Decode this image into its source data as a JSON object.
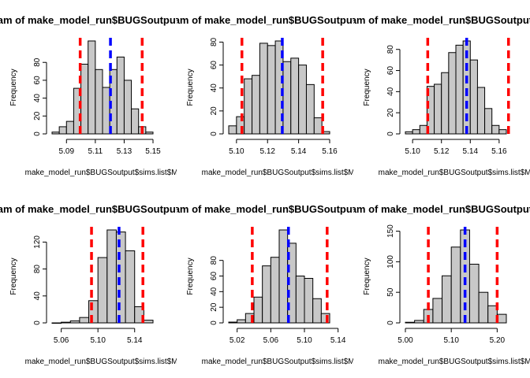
{
  "figure": {
    "title": "Histogram of make_model_run$BUGSoutput$sims.list$M[",
    "xlabel": "make_model_run$BUGSoutput$sims.list$M[",
    "ylabel": "Frequency"
  },
  "colors": {
    "bars": "#c8c8c8",
    "ci_lines": "#ff0000",
    "mean_line": "#0000ff"
  },
  "chart_data": [
    {
      "type": "bar",
      "title": "Histogram of make_model_run$BUGSoutput$sims.list$M[",
      "xlabel": "make_model_run$BUGSoutput$sims.list$M[",
      "ylabel": "Frequency",
      "bin_start": 5.08,
      "bin_width": 0.005,
      "values": [
        2,
        8,
        14,
        51,
        78,
        104,
        72,
        52,
        72,
        86,
        60,
        28,
        8,
        2
      ],
      "xticks": [
        5.09,
        5.11,
        5.13,
        5.15
      ],
      "yticks": [
        0,
        20,
        40,
        60,
        80
      ],
      "xlim": [
        5.08,
        5.15
      ],
      "ylim": [
        0,
        104
      ],
      "ci": [
        5.0995,
        5.1425
      ],
      "mean": 5.1205
    },
    {
      "type": "bar",
      "title": "Histogram of make_model_run$BUGSoutput$sims.list$M[",
      "xlabel": "make_model_run$BUGSoutput$sims.list$M[",
      "ylabel": "Frequency",
      "bin_start": 5.095,
      "bin_width": 0.005,
      "values": [
        7,
        15,
        48,
        51,
        79,
        77,
        81,
        63,
        66,
        60,
        43,
        14,
        2
      ],
      "xticks": [
        5.1,
        5.12,
        5.14,
        5.16
      ],
      "yticks": [
        0,
        20,
        40,
        60,
        80
      ],
      "xlim": [
        5.095,
        5.16
      ],
      "ylim": [
        0,
        81
      ],
      "ci": [
        5.1035,
        5.1555
      ],
      "mean": 5.1295
    },
    {
      "type": "bar",
      "title": "Histogram of make_model_run$BUGSoutput$sims.list$M[",
      "xlabel": "make_model_run$BUGSoutput$sims.list$M[",
      "ylabel": "Frequency",
      "bin_start": 5.095,
      "bin_width": 0.005,
      "values": [
        2,
        4,
        8,
        45,
        47,
        58,
        77,
        84,
        88,
        70,
        44,
        24,
        8,
        4
      ],
      "xticks": [
        5.1,
        5.12,
        5.14,
        5.16
      ],
      "yticks": [
        0,
        20,
        40,
        60,
        80
      ],
      "xlim": [
        5.095,
        5.165
      ],
      "ylim": [
        0,
        88
      ],
      "ci": [
        5.1105,
        5.1665
      ],
      "mean": 5.1375
    },
    {
      "type": "bar",
      "title": "Histogram of make_model_run$BUGSoutput$sims.list$M[",
      "xlabel": "make_model_run$BUGSoutput$sims.list$M[",
      "ylabel": "Frequency",
      "bin_start": 5.05,
      "bin_width": 0.01,
      "values": [
        0,
        1,
        3,
        8,
        33,
        97,
        138,
        135,
        107,
        24,
        4
      ],
      "xticks": [
        5.06,
        5.1,
        5.14
      ],
      "yticks": [
        0,
        40,
        80,
        120
      ],
      "xlim": [
        5.05,
        5.16
      ],
      "ylim": [
        0,
        138
      ],
      "ci": [
        5.093,
        5.149
      ],
      "mean": 5.123
    },
    {
      "type": "bar",
      "title": "Histogram of make_model_run$BUGSoutput$sims.list$M[",
      "xlabel": "make_model_run$BUGSoutput$sims.list$M[",
      "ylabel": "Frequency",
      "bin_start": 5.01,
      "bin_width": 0.01,
      "values": [
        1,
        4,
        12,
        33,
        73,
        84,
        119,
        102,
        60,
        57,
        31,
        12
      ],
      "xticks": [
        5.02,
        5.06,
        5.1,
        5.14
      ],
      "yticks": [
        0,
        20,
        40,
        60,
        80
      ],
      "xlim": [
        5.01,
        5.13
      ],
      "ylim": [
        0,
        119
      ],
      "ci": [
        5.038,
        5.127
      ],
      "mean": 5.081
    },
    {
      "type": "bar",
      "title": "Histogram of make_model_run$BUGSoutput$sims.list$M[",
      "xlabel": "make_model_run$BUGSoutput$sims.list$M[",
      "ylabel": "Frequency",
      "bin_start": 5.0,
      "bin_width": 0.02,
      "values": [
        1,
        4,
        22,
        40,
        77,
        124,
        152,
        96,
        50,
        28,
        14
      ],
      "xticks": [
        5.0,
        5.1,
        5.2
      ],
      "yticks": [
        0,
        50,
        100,
        150
      ],
      "xlim": [
        5.0,
        5.22
      ],
      "ylim": [
        0,
        152
      ],
      "ci": [
        5.05,
        5.2
      ],
      "mean": 5.13
    }
  ]
}
